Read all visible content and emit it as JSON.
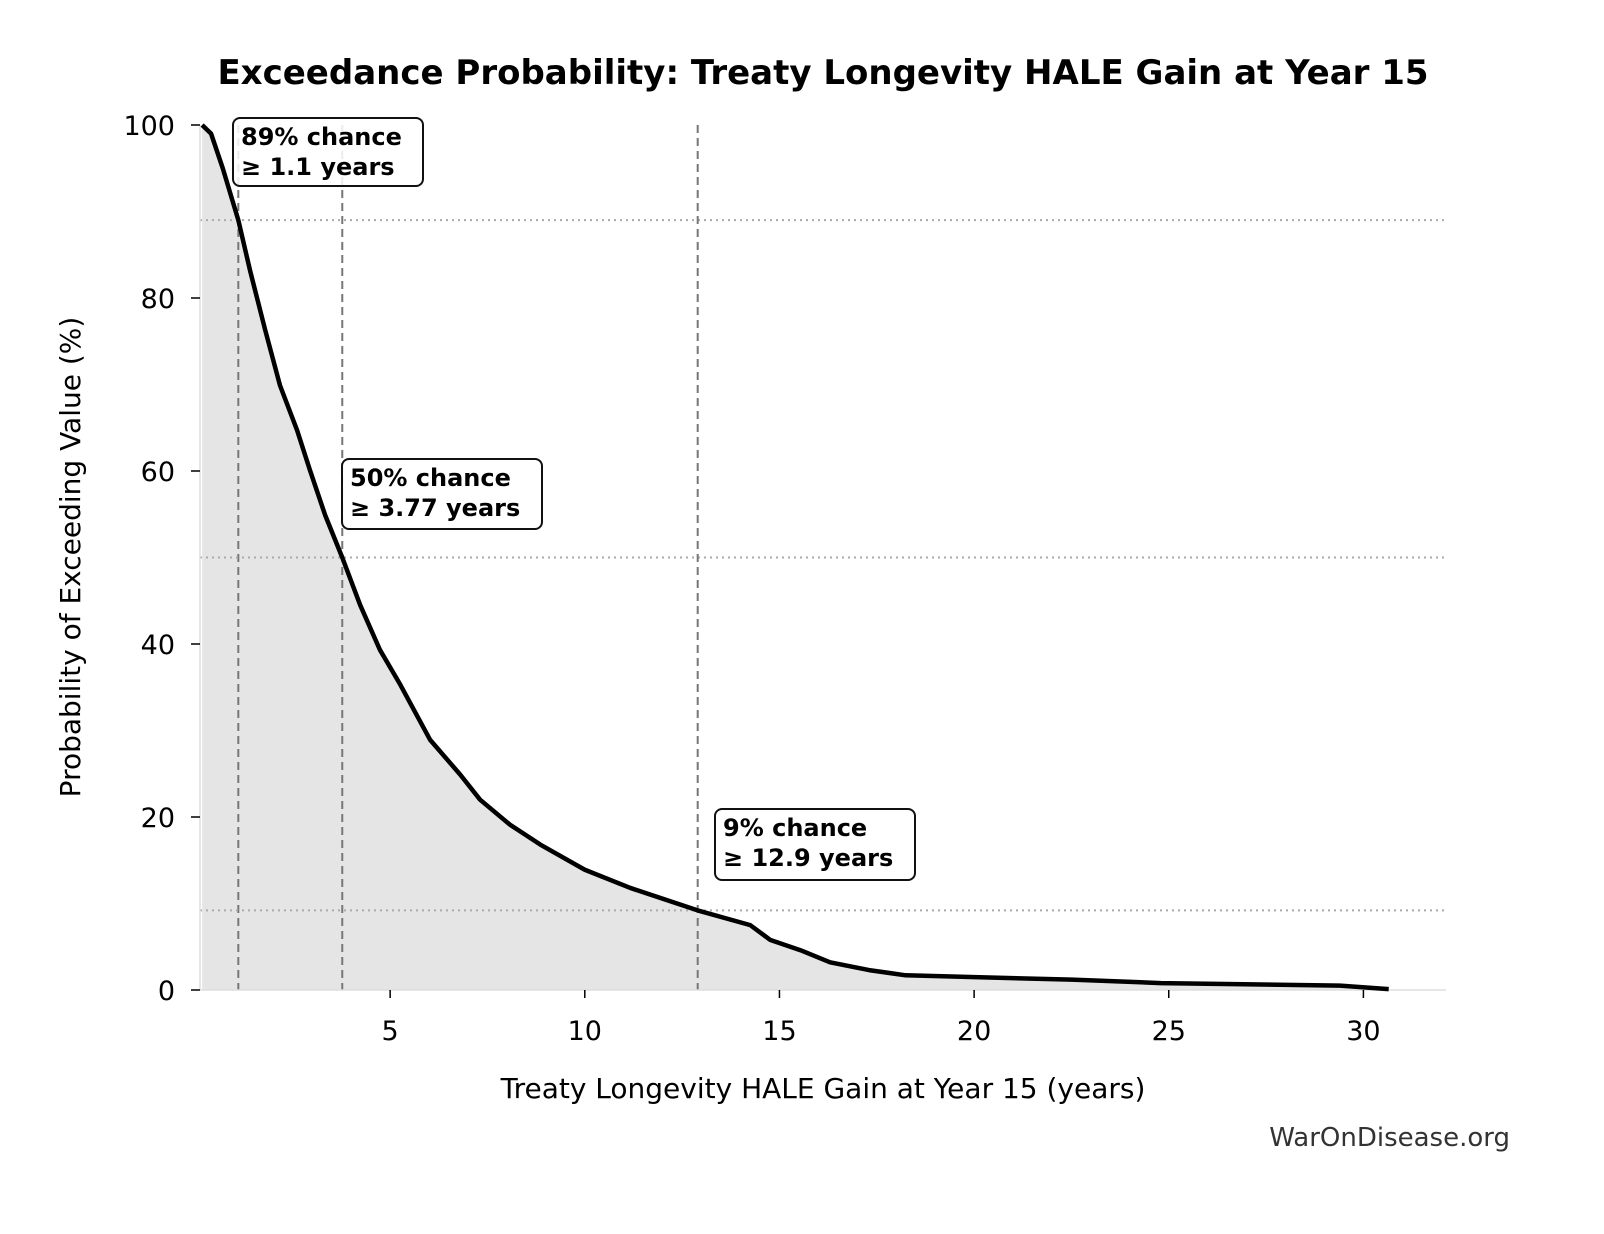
{
  "chart_data": {
    "type": "area",
    "title": "Exceedance Probability: Treaty Longevity HALE Gain at Year 15",
    "xlabel": "Treaty Longevity HALE Gain at Year 15 (years)",
    "ylabel": "Probability of Exceeding Value (%)",
    "xlim": [
      0.12,
      32.2
    ],
    "ylim": [
      0,
      100
    ],
    "xticks": [
      5,
      10,
      15,
      20,
      25,
      30
    ],
    "yticks": [
      0,
      20,
      40,
      60,
      80,
      100
    ],
    "grid": false,
    "line_color": "#000000",
    "fill_color": "#e5e5e5",
    "x": [
      0.17,
      0.4,
      0.7,
      1.1,
      1.4,
      1.79,
      2.17,
      2.61,
      2.94,
      3.33,
      3.77,
      4.23,
      4.74,
      5.26,
      6.03,
      6.8,
      7.31,
      8.08,
      8.86,
      10,
      11.17,
      12.9,
      14.25,
      14.76,
      15.54,
      16.3,
      17.3,
      18.24,
      19.9,
      22.5,
      24.8,
      29.4,
      30.65
    ],
    "y": [
      100,
      99,
      95,
      89,
      83.2,
      76.3,
      69.9,
      64.7,
      60.1,
      54.9,
      50,
      44.5,
      39.3,
      35.3,
      28.9,
      24.9,
      22.0,
      19.1,
      16.8,
      13.9,
      11.8,
      9.2,
      7.5,
      5.8,
      4.6,
      3.2,
      2.3,
      1.7,
      1.5,
      1.2,
      0.8,
      0.5,
      0.1
    ],
    "annotations": [
      {
        "x": 1.1,
        "y": 89,
        "line1": "89% chance",
        "line2": "≥ 1.1 years"
      },
      {
        "x": 3.77,
        "y": 50,
        "line1": "50% chance",
        "line2": "≥ 3.77 years"
      },
      {
        "x": 12.9,
        "y": 9.2,
        "line1": "9% chance",
        "line2": "≥ 12.9 years"
      }
    ]
  },
  "watermark": "WarOnDisease.org"
}
